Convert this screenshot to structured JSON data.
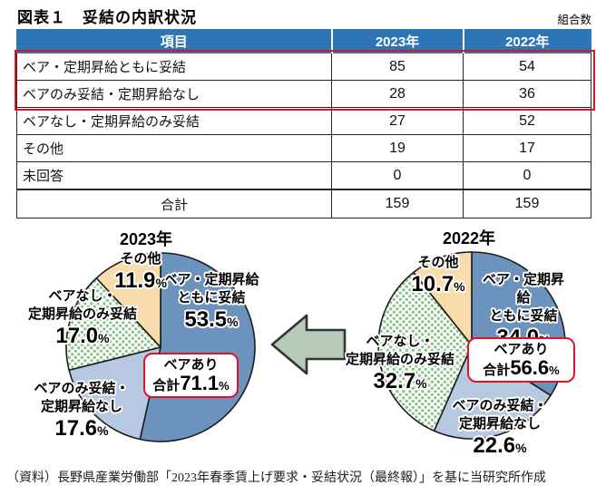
{
  "page": {
    "title": "図表１　妥結の内訳状況",
    "unit_label": "組合数",
    "source_note": "（資料）長野県産業労働部「2023年春季賃上げ要求・妥結状況（最終報）」を基に当研究所作成"
  },
  "colors": {
    "header_blue": "#2e75b6",
    "highlight_red": "#dd1522",
    "slice_dark_blue": "#6b93be",
    "slice_light_blue": "#b7c9e0",
    "slice_orange": "#f8dcae",
    "dot_green": "#8bc48b",
    "arrow_fill": "#b5cbb7"
  },
  "table": {
    "headers": [
      "項目",
      "2023年",
      "2022年"
    ],
    "rows": [
      {
        "label": "ベア・定期昇給ともに妥結",
        "y2023": "85",
        "y2022": "54"
      },
      {
        "label": "ベアのみ妥結・定期昇給なし",
        "y2023": "28",
        "y2022": "36"
      },
      {
        "label": "ベアなし・定期昇給のみ妥結",
        "y2023": "27",
        "y2022": "52"
      },
      {
        "label": "その他",
        "y2023": "19",
        "y2022": "17"
      },
      {
        "label": "未回答",
        "y2023": "0",
        "y2022": "0"
      },
      {
        "label": "合計",
        "y2023": "159",
        "y2022": "159"
      }
    ]
  },
  "chart_data": [
    {
      "type": "pie",
      "title": "2023年",
      "rotation": "clockwise-from-top",
      "slices": [
        {
          "name": "ベア・定期昇給\nともに妥結",
          "value": 53.5,
          "display": "53.5",
          "unit": "%",
          "color": "#6b93be"
        },
        {
          "name": "ベアのみ妥結・\n定期昇給なし",
          "value": 17.6,
          "display": "17.6",
          "unit": "%",
          "color": "#b7c9e0"
        },
        {
          "name": "ベアなし・\n定期昇給のみ妥結",
          "value": 17.0,
          "display": "17.0",
          "unit": "%",
          "pattern": "green-dots",
          "color": "#ffffff"
        },
        {
          "name": "その他",
          "value": 11.9,
          "display": "11.9",
          "unit": "%",
          "color": "#f8dcae"
        }
      ],
      "callout": {
        "line1": "ベアあり",
        "prefix": "合計",
        "value": "71.1",
        "unit": "%"
      }
    },
    {
      "type": "pie",
      "title": "2022年",
      "rotation": "clockwise-from-top",
      "slices": [
        {
          "name": "ベア・定期昇給\nともに妥結",
          "value": 34.0,
          "display": "34.0",
          "unit": "%",
          "color": "#6b93be"
        },
        {
          "name": "ベアのみ妥結・\n定期昇給なし",
          "value": 22.6,
          "display": "22.6",
          "unit": "%",
          "color": "#b7c9e0"
        },
        {
          "name": "ベアなし・\n定期昇給のみ妥結",
          "value": 32.7,
          "display": "32.7",
          "unit": "%",
          "pattern": "green-dots",
          "color": "#ffffff"
        },
        {
          "name": "その他",
          "value": 10.7,
          "display": "10.7",
          "unit": "%",
          "color": "#f8dcae"
        }
      ],
      "callout": {
        "line1": "ベアあり",
        "prefix": "合計",
        "value": "56.6",
        "unit": "%"
      }
    }
  ],
  "arrow": {
    "icon": "left-block-arrow"
  }
}
